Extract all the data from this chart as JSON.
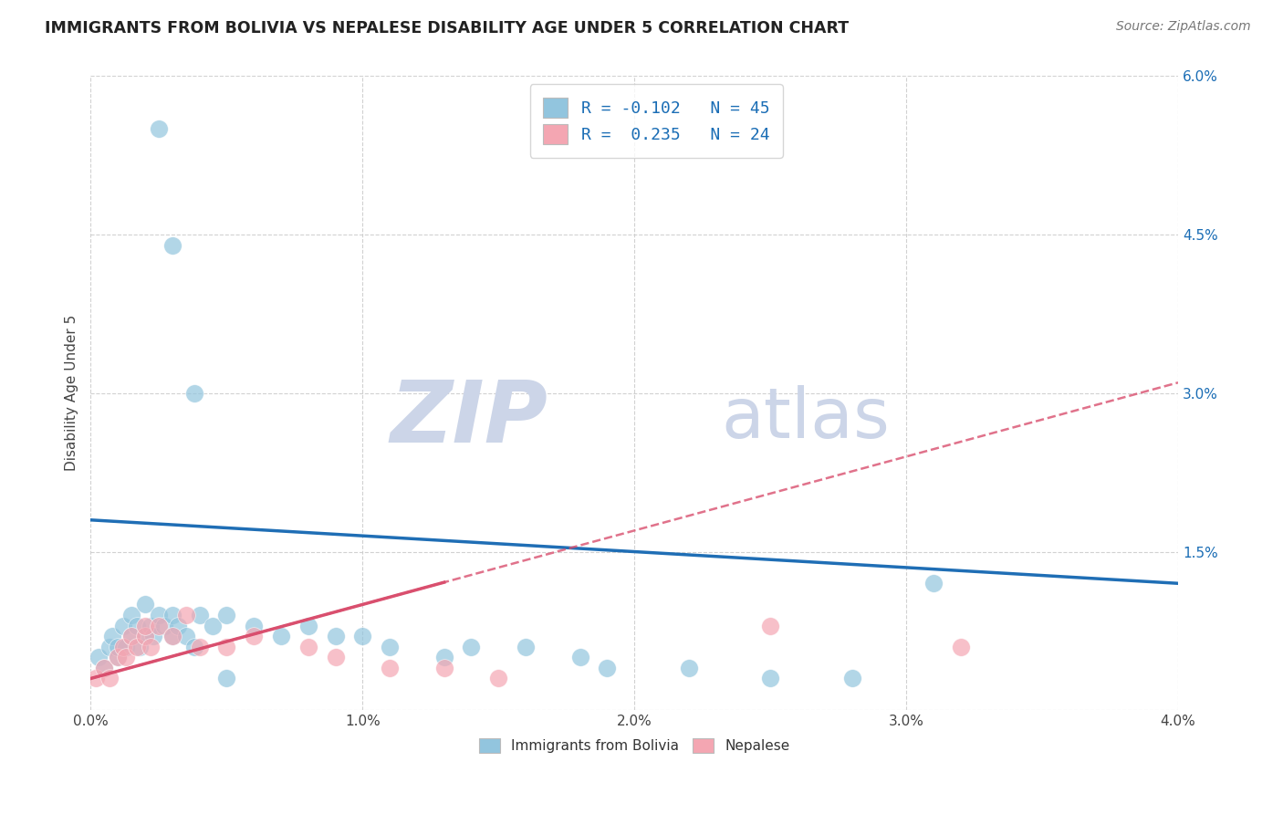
{
  "title": "IMMIGRANTS FROM BOLIVIA VS NEPALESE DISABILITY AGE UNDER 5 CORRELATION CHART",
  "source": "Source: ZipAtlas.com",
  "ylabel": "Disability Age Under 5",
  "r1": -0.102,
  "n1": 45,
  "r2": 0.235,
  "n2": 24,
  "xlim": [
    0.0,
    0.04
  ],
  "ylim": [
    0.0,
    0.06
  ],
  "x_ticks": [
    0.0,
    0.01,
    0.02,
    0.03,
    0.04
  ],
  "x_tick_labels": [
    "0.0%",
    "1.0%",
    "2.0%",
    "3.0%",
    "4.0%"
  ],
  "y_ticks": [
    0.0,
    0.015,
    0.03,
    0.045,
    0.06
  ],
  "y_tick_labels": [
    "",
    "1.5%",
    "3.0%",
    "4.5%",
    "6.0%"
  ],
  "color_blue": "#92c5de",
  "color_pink": "#f4a6b2",
  "line_blue": "#1f6eb5",
  "line_pink": "#d94f6e",
  "background": "#ffffff",
  "grid_color": "#cccccc",
  "watermark_zip": "ZIP",
  "watermark_atlas": "atlas",
  "watermark_color": "#ccd5e8",
  "legend_label1": "Immigrants from Bolivia",
  "legend_label2": "Nepalese",
  "blue_x": [
    0.0003,
    0.0005,
    0.0007,
    0.0008,
    0.001,
    0.001,
    0.0012,
    0.0013,
    0.0015,
    0.0015,
    0.0017,
    0.0018,
    0.002,
    0.002,
    0.0022,
    0.0023,
    0.0025,
    0.0027,
    0.003,
    0.003,
    0.0032,
    0.0035,
    0.0038,
    0.004,
    0.0045,
    0.005,
    0.006,
    0.007,
    0.008,
    0.009,
    0.01,
    0.011,
    0.013,
    0.014,
    0.016,
    0.018,
    0.019,
    0.022,
    0.025,
    0.028,
    0.0025,
    0.003,
    0.0038,
    0.005,
    0.031
  ],
  "blue_y": [
    0.005,
    0.004,
    0.006,
    0.007,
    0.005,
    0.006,
    0.008,
    0.006,
    0.007,
    0.009,
    0.008,
    0.006,
    0.007,
    0.01,
    0.008,
    0.007,
    0.009,
    0.008,
    0.007,
    0.009,
    0.008,
    0.007,
    0.006,
    0.009,
    0.008,
    0.009,
    0.008,
    0.007,
    0.008,
    0.007,
    0.007,
    0.006,
    0.005,
    0.006,
    0.006,
    0.005,
    0.004,
    0.004,
    0.003,
    0.003,
    0.055,
    0.044,
    0.03,
    0.003,
    0.012
  ],
  "pink_x": [
    0.0002,
    0.0005,
    0.0007,
    0.001,
    0.0012,
    0.0013,
    0.0015,
    0.0017,
    0.002,
    0.002,
    0.0022,
    0.0025,
    0.003,
    0.0035,
    0.004,
    0.005,
    0.006,
    0.008,
    0.009,
    0.011,
    0.013,
    0.015,
    0.025,
    0.032
  ],
  "pink_y": [
    0.003,
    0.004,
    0.003,
    0.005,
    0.006,
    0.005,
    0.007,
    0.006,
    0.007,
    0.008,
    0.006,
    0.008,
    0.007,
    0.009,
    0.006,
    0.006,
    0.007,
    0.006,
    0.005,
    0.004,
    0.004,
    0.003,
    0.008,
    0.006
  ],
  "blue_intercept": 0.018,
  "blue_slope": -0.15,
  "pink_intercept": 0.003,
  "pink_slope": 0.7
}
